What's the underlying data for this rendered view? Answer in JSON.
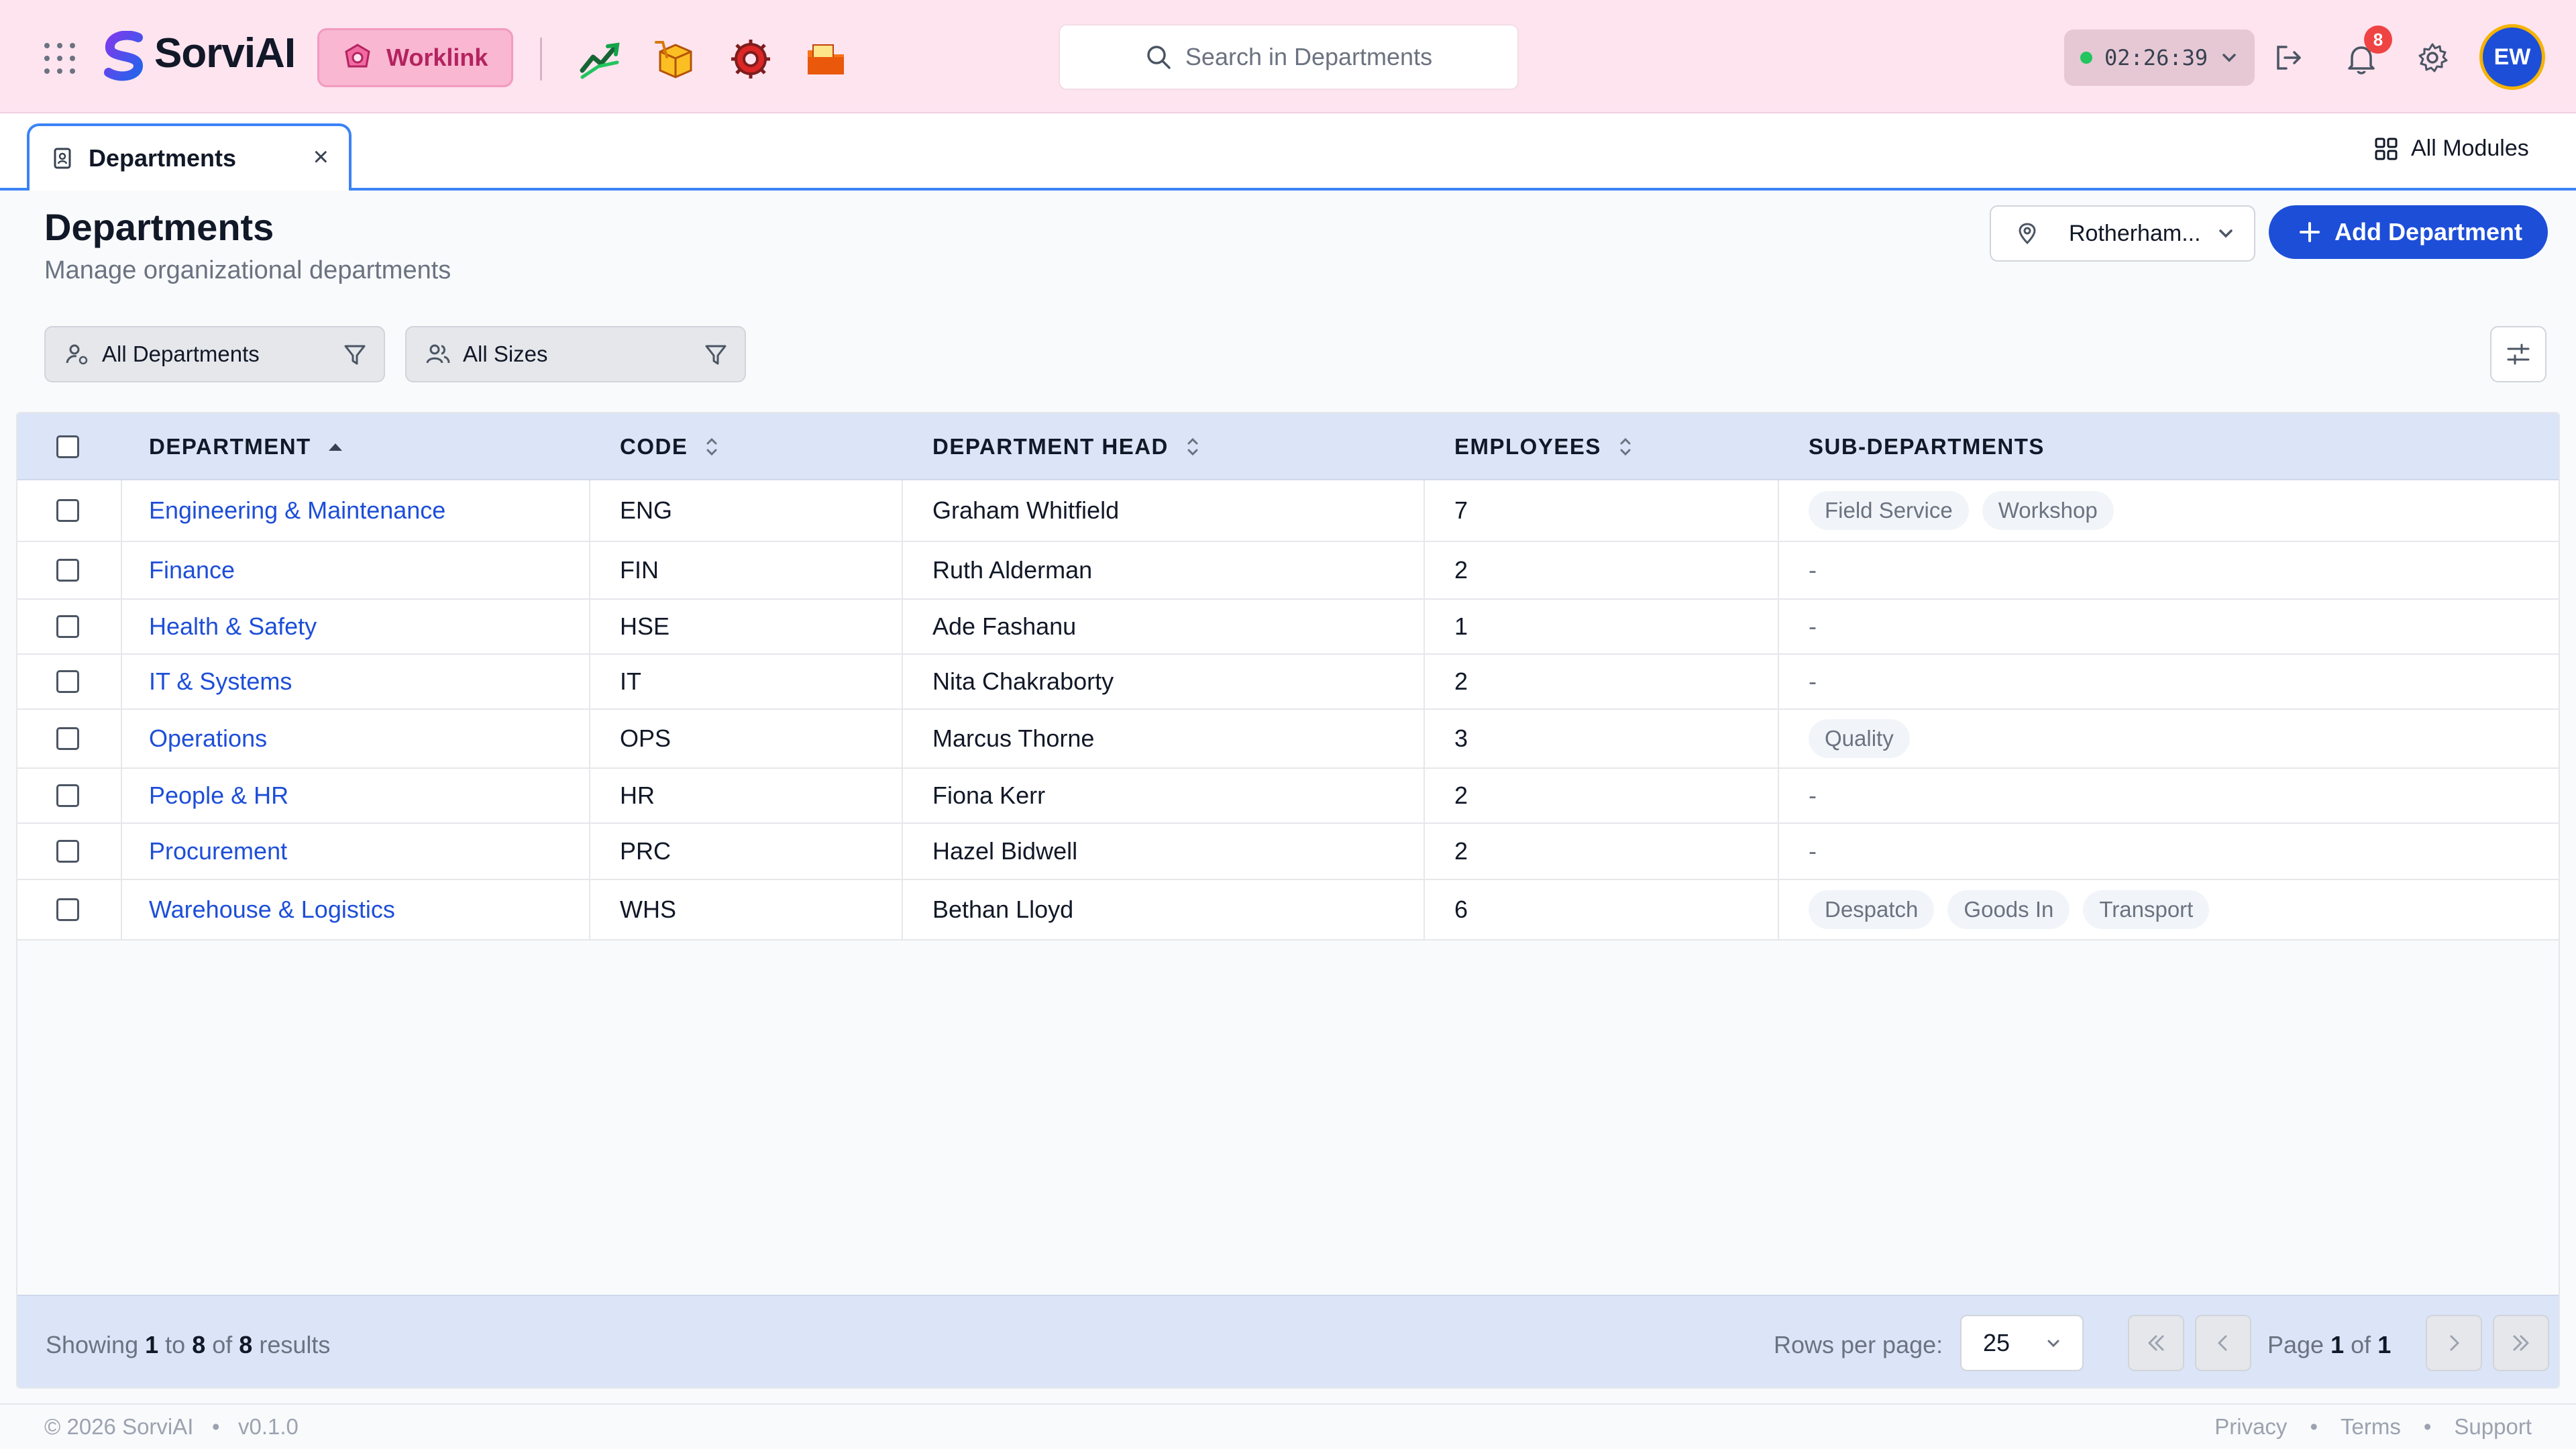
{
  "header": {
    "brand": "SorviAI",
    "module_button": "Worklink",
    "search_placeholder": "Search in Departments",
    "timer": "02:26:39",
    "notification_count": "8",
    "avatar_initials": "EW",
    "colors": {
      "header_bg": "#fde4ef",
      "primary": "#1d4ed8",
      "worklink": "#b4235f"
    }
  },
  "tabs": {
    "active_tab": "Departments",
    "all_modules": "All Modules"
  },
  "page": {
    "title": "Departments",
    "subtitle": "Manage organizational departments",
    "location": "Rotherham...",
    "add_button": "Add Department"
  },
  "filters": {
    "departments": "All Departments",
    "sizes": "All Sizes"
  },
  "table": {
    "columns": {
      "department": "DEPARTMENT",
      "code": "CODE",
      "head": "DEPARTMENT HEAD",
      "employees": "EMPLOYEES",
      "subdepartments": "SUB-DEPARTMENTS"
    },
    "rows": [
      {
        "department": "Engineering & Maintenance",
        "code": "ENG",
        "head": "Graham Whitfield",
        "employees": "7",
        "sub": [
          "Field Service",
          "Workshop"
        ]
      },
      {
        "department": "Finance",
        "code": "FIN",
        "head": "Ruth Alderman",
        "employees": "2",
        "sub": []
      },
      {
        "department": "Health & Safety",
        "code": "HSE",
        "head": "Ade Fashanu",
        "employees": "1",
        "sub": []
      },
      {
        "department": "IT & Systems",
        "code": "IT",
        "head": "Nita Chakraborty",
        "employees": "2",
        "sub": []
      },
      {
        "department": "Operations",
        "code": "OPS",
        "head": "Marcus Thorne",
        "employees": "3",
        "sub": [
          "Quality"
        ]
      },
      {
        "department": "People & HR",
        "code": "HR",
        "head": "Fiona Kerr",
        "employees": "2",
        "sub": []
      },
      {
        "department": "Procurement",
        "code": "PRC",
        "head": "Hazel Bidwell",
        "employees": "2",
        "sub": []
      },
      {
        "department": "Warehouse & Logistics",
        "code": "WHS",
        "head": "Bethan Lloyd",
        "employees": "6",
        "sub": [
          "Despatch",
          "Goods In",
          "Transport"
        ]
      }
    ],
    "empty_placeholder": "-"
  },
  "pagination": {
    "showing_prefix": "Showing",
    "from": "1",
    "to_word": "to",
    "to": "8",
    "of_word": "of",
    "total": "8",
    "results_word": "results",
    "rows_per_page_label": "Rows per page:",
    "rows_per_page": "25",
    "page_word": "Page",
    "page": "1",
    "pages": "1"
  },
  "footer": {
    "copyright": "© 2026 SorviAI",
    "version": "v0.1.0",
    "links": [
      "Privacy",
      "Terms",
      "Support"
    ]
  }
}
